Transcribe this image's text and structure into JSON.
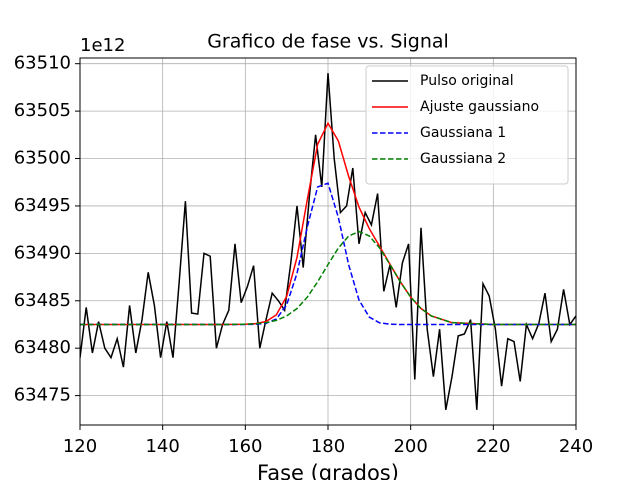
{
  "chart_data": {
    "type": "line",
    "title": "Grafico de fase vs. Signal",
    "x_label": "Fase (grados)",
    "y_offset_text": "1e12",
    "xlim": [
      120,
      240
    ],
    "ylim": [
      63471.9,
      63510.6
    ],
    "xticks": [
      120,
      140,
      160,
      180,
      200,
      220,
      240
    ],
    "yticks": [
      63475,
      63480,
      63485,
      63490,
      63495,
      63500,
      63505,
      63510
    ],
    "grid": true,
    "legend": "upper right",
    "series": [
      {
        "name": "Pulso original",
        "color": "#000000",
        "style": "solid",
        "x": [
          120,
          121.5,
          123,
          124.5,
          126,
          127.5,
          129,
          130.5,
          132,
          133.5,
          135,
          136.5,
          138,
          139.5,
          141,
          142.5,
          144,
          145.5,
          147,
          148.5,
          150,
          151.5,
          153,
          154.5,
          156,
          157.5,
          159,
          160.5,
          162,
          163.5,
          165,
          166.5,
          168,
          169.5,
          171,
          172.5,
          174,
          175.5,
          177,
          178.5,
          180,
          181.5,
          183,
          184.5,
          186,
          187.5,
          189,
          190.5,
          192,
          193.5,
          195,
          196.5,
          198,
          199.5,
          201,
          202.5,
          204,
          205.5,
          207,
          208.5,
          210,
          211.5,
          213,
          214.5,
          216,
          217.5,
          219,
          220.5,
          222,
          223.5,
          225,
          226.5,
          228,
          229.5,
          231,
          232.5,
          234,
          235.5,
          237,
          238.5,
          240
        ],
        "values": [
          63479,
          63484.3,
          63479.5,
          63482.8,
          63480,
          63479,
          63481,
          63478,
          63484.5,
          63479.5,
          63483,
          63488,
          63484.5,
          63479,
          63482.8,
          63479,
          63487,
          63495.5,
          63483.7,
          63483.6,
          63490,
          63489.7,
          63480,
          63482.5,
          63484,
          63491,
          63484.8,
          63486.5,
          63488.7,
          63480,
          63483,
          63485.8,
          63485,
          63484,
          63489,
          63495,
          63488.5,
          63496,
          63502.5,
          63497,
          63509,
          63500,
          63494.3,
          63495,
          63499,
          63491,
          63494.3,
          63493,
          63496.3,
          63486,
          63488.8,
          63484.3,
          63489,
          63491,
          63476.7,
          63492.7,
          63482,
          63477,
          63482,
          63473.5,
          63477,
          63481.3,
          63481.5,
          63483,
          63473.5,
          63486.8,
          63485.5,
          63482,
          63476,
          63481,
          63480.7,
          63476.5,
          63482.5,
          63481,
          63482.6,
          63485.8,
          63480.7,
          63482,
          63486.2,
          63482.5,
          63483.4
        ]
      },
      {
        "name": "Ajuste gaussiano",
        "color": "#ff0000",
        "style": "solid",
        "x": [
          120,
          140,
          155,
          160,
          162.5,
          165,
          167.5,
          170,
          172.5,
          175,
          177.5,
          180,
          182.5,
          185,
          187.5,
          190,
          192.5,
          195,
          197.5,
          200,
          202.5,
          205,
          210,
          220,
          240
        ],
        "values": [
          63482.5,
          63482.5,
          63482.5,
          63482.53,
          63482.59,
          63482.81,
          63483.51,
          63485.47,
          63489.57,
          63495.69,
          63501.5,
          63503.72,
          63501.86,
          63498.12,
          63494.88,
          63492.6,
          63490.73,
          63488.85,
          63487,
          63485.39,
          63484.18,
          63483.4,
          63482.69,
          63482.5,
          63482.5
        ]
      },
      {
        "name": "Gaussiana 1",
        "color": "#0000ff",
        "style": "dashed",
        "x": [
          120,
          140,
          155,
          160,
          162.5,
          165,
          167.5,
          170,
          172.5,
          175,
          177.5,
          180,
          182.5,
          185,
          187.5,
          190,
          192.5,
          195,
          197.5,
          200,
          202.5,
          205,
          210,
          220,
          240
        ],
        "values": [
          63482.5,
          63482.5,
          63482.5,
          63482.5,
          63482.52,
          63482.62,
          63483.08,
          63484.57,
          63487.89,
          63492.8,
          63497,
          63497.4,
          63493.8,
          63488.79,
          63485.08,
          63483.27,
          63482.67,
          63482.53,
          63482.5,
          63482.5,
          63482.5,
          63482.5,
          63482.5,
          63482.5,
          63482.5
        ]
      },
      {
        "name": "Gaussiana 2",
        "color": "#008000",
        "style": "dashed",
        "x": [
          120,
          140,
          155,
          160,
          162.5,
          165,
          167.5,
          170,
          172.5,
          175,
          177.5,
          180,
          182.5,
          185,
          187.5,
          190,
          192.5,
          195,
          197.5,
          200,
          202.5,
          205,
          210,
          220,
          240
        ],
        "values": [
          63482.5,
          63482.5,
          63482.5,
          63482.53,
          63482.57,
          63482.69,
          63482.93,
          63483.4,
          63484.18,
          63485.39,
          63487,
          63488.82,
          63490.56,
          63491.83,
          63492.3,
          63491.83,
          63490.56,
          63488.82,
          63487,
          63485.39,
          63484.18,
          63483.4,
          63482.69,
          63482.5,
          63482.5
        ]
      }
    ]
  }
}
